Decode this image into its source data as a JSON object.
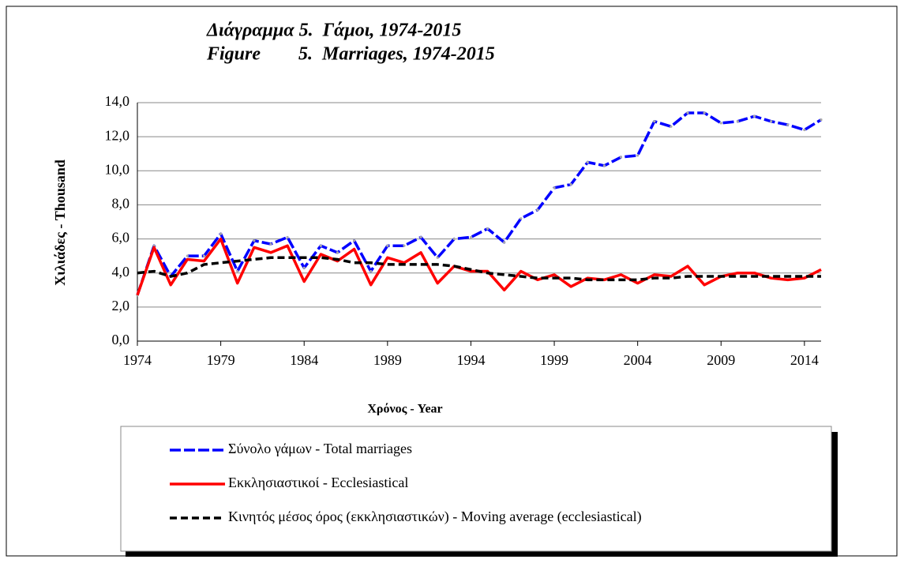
{
  "chart_data": {
    "type": "line",
    "title": "Διάγραμμα 5.  Γάμοι, 1974-2015",
    "subtitle": "Figure        5.  Marriages, 1974-2015",
    "ylabel": "Χιλιάδες - Thousand",
    "xlabel": "Χρόνος - Year",
    "x": [
      1974,
      1975,
      1976,
      1977,
      1978,
      1979,
      1980,
      1981,
      1982,
      1983,
      1984,
      1985,
      1986,
      1987,
      1988,
      1989,
      1990,
      1991,
      1992,
      1993,
      1994,
      1995,
      1996,
      1997,
      1998,
      1999,
      2000,
      2001,
      2002,
      2003,
      2004,
      2005,
      2006,
      2007,
      2008,
      2009,
      2010,
      2011,
      2012,
      2013,
      2014,
      2015
    ],
    "series": [
      {
        "name": "Σύνολο γάμων - Total marriages",
        "color": "#0000ff",
        "style": "dashdot",
        "values": [
          2.7,
          5.6,
          3.8,
          5.0,
          5.0,
          6.3,
          4.1,
          5.9,
          5.7,
          6.1,
          4.3,
          5.6,
          5.2,
          5.9,
          4.1,
          5.6,
          5.6,
          6.1,
          4.9,
          6.0,
          6.1,
          6.6,
          5.8,
          7.2,
          7.7,
          9.0,
          9.2,
          10.5,
          10.3,
          10.8,
          10.9,
          12.9,
          12.6,
          13.4,
          13.4,
          12.8,
          12.9,
          13.2,
          12.9,
          12.7,
          12.4,
          13.0
        ]
      },
      {
        "name": "Εκκλησιαστικοί - Ecclesiastical",
        "color": "#ff0000",
        "style": "solid",
        "values": [
          2.7,
          5.5,
          3.3,
          4.8,
          4.7,
          6.0,
          3.4,
          5.5,
          5.2,
          5.6,
          3.5,
          5.1,
          4.7,
          5.4,
          3.3,
          4.9,
          4.6,
          5.2,
          3.4,
          4.4,
          4.1,
          4.1,
          3.0,
          4.1,
          3.6,
          3.9,
          3.2,
          3.7,
          3.6,
          3.9,
          3.4,
          3.9,
          3.8,
          4.4,
          3.3,
          3.8,
          4.0,
          4.0,
          3.7,
          3.6,
          3.7,
          4.2
        ]
      },
      {
        "name": "Κινητός μέσος όρος (εκκλησιαστικών) - Moving average (ecclesiastical)",
        "color": "#000000",
        "style": "dashed",
        "values": [
          4.0,
          4.1,
          3.8,
          4.0,
          4.5,
          4.6,
          4.7,
          4.8,
          4.9,
          4.9,
          4.9,
          4.9,
          4.8,
          4.6,
          4.6,
          4.5,
          4.5,
          4.5,
          4.5,
          4.4,
          4.2,
          4.0,
          3.9,
          3.8,
          3.7,
          3.7,
          3.7,
          3.6,
          3.6,
          3.6,
          3.6,
          3.7,
          3.7,
          3.8,
          3.8,
          3.8,
          3.8,
          3.8,
          3.8,
          3.8,
          3.8,
          3.8
        ]
      }
    ],
    "xlim": [
      1974,
      2015
    ],
    "xticks": [
      1974,
      1979,
      1984,
      1989,
      1994,
      1999,
      2004,
      2009,
      2014
    ],
    "ylim": [
      0,
      14
    ],
    "yticks": [
      {
        "value": 0,
        "label": "0,0"
      },
      {
        "value": 2,
        "label": "2,0"
      },
      {
        "value": 4,
        "label": "4,0"
      },
      {
        "value": 6,
        "label": "6,0"
      },
      {
        "value": 8,
        "label": "8,0"
      },
      {
        "value": 10,
        "label": "10,0"
      },
      {
        "value": 12,
        "label": "12,0"
      },
      {
        "value": 14,
        "label": "14,0"
      }
    ],
    "grid": true,
    "legend": "bottom"
  }
}
